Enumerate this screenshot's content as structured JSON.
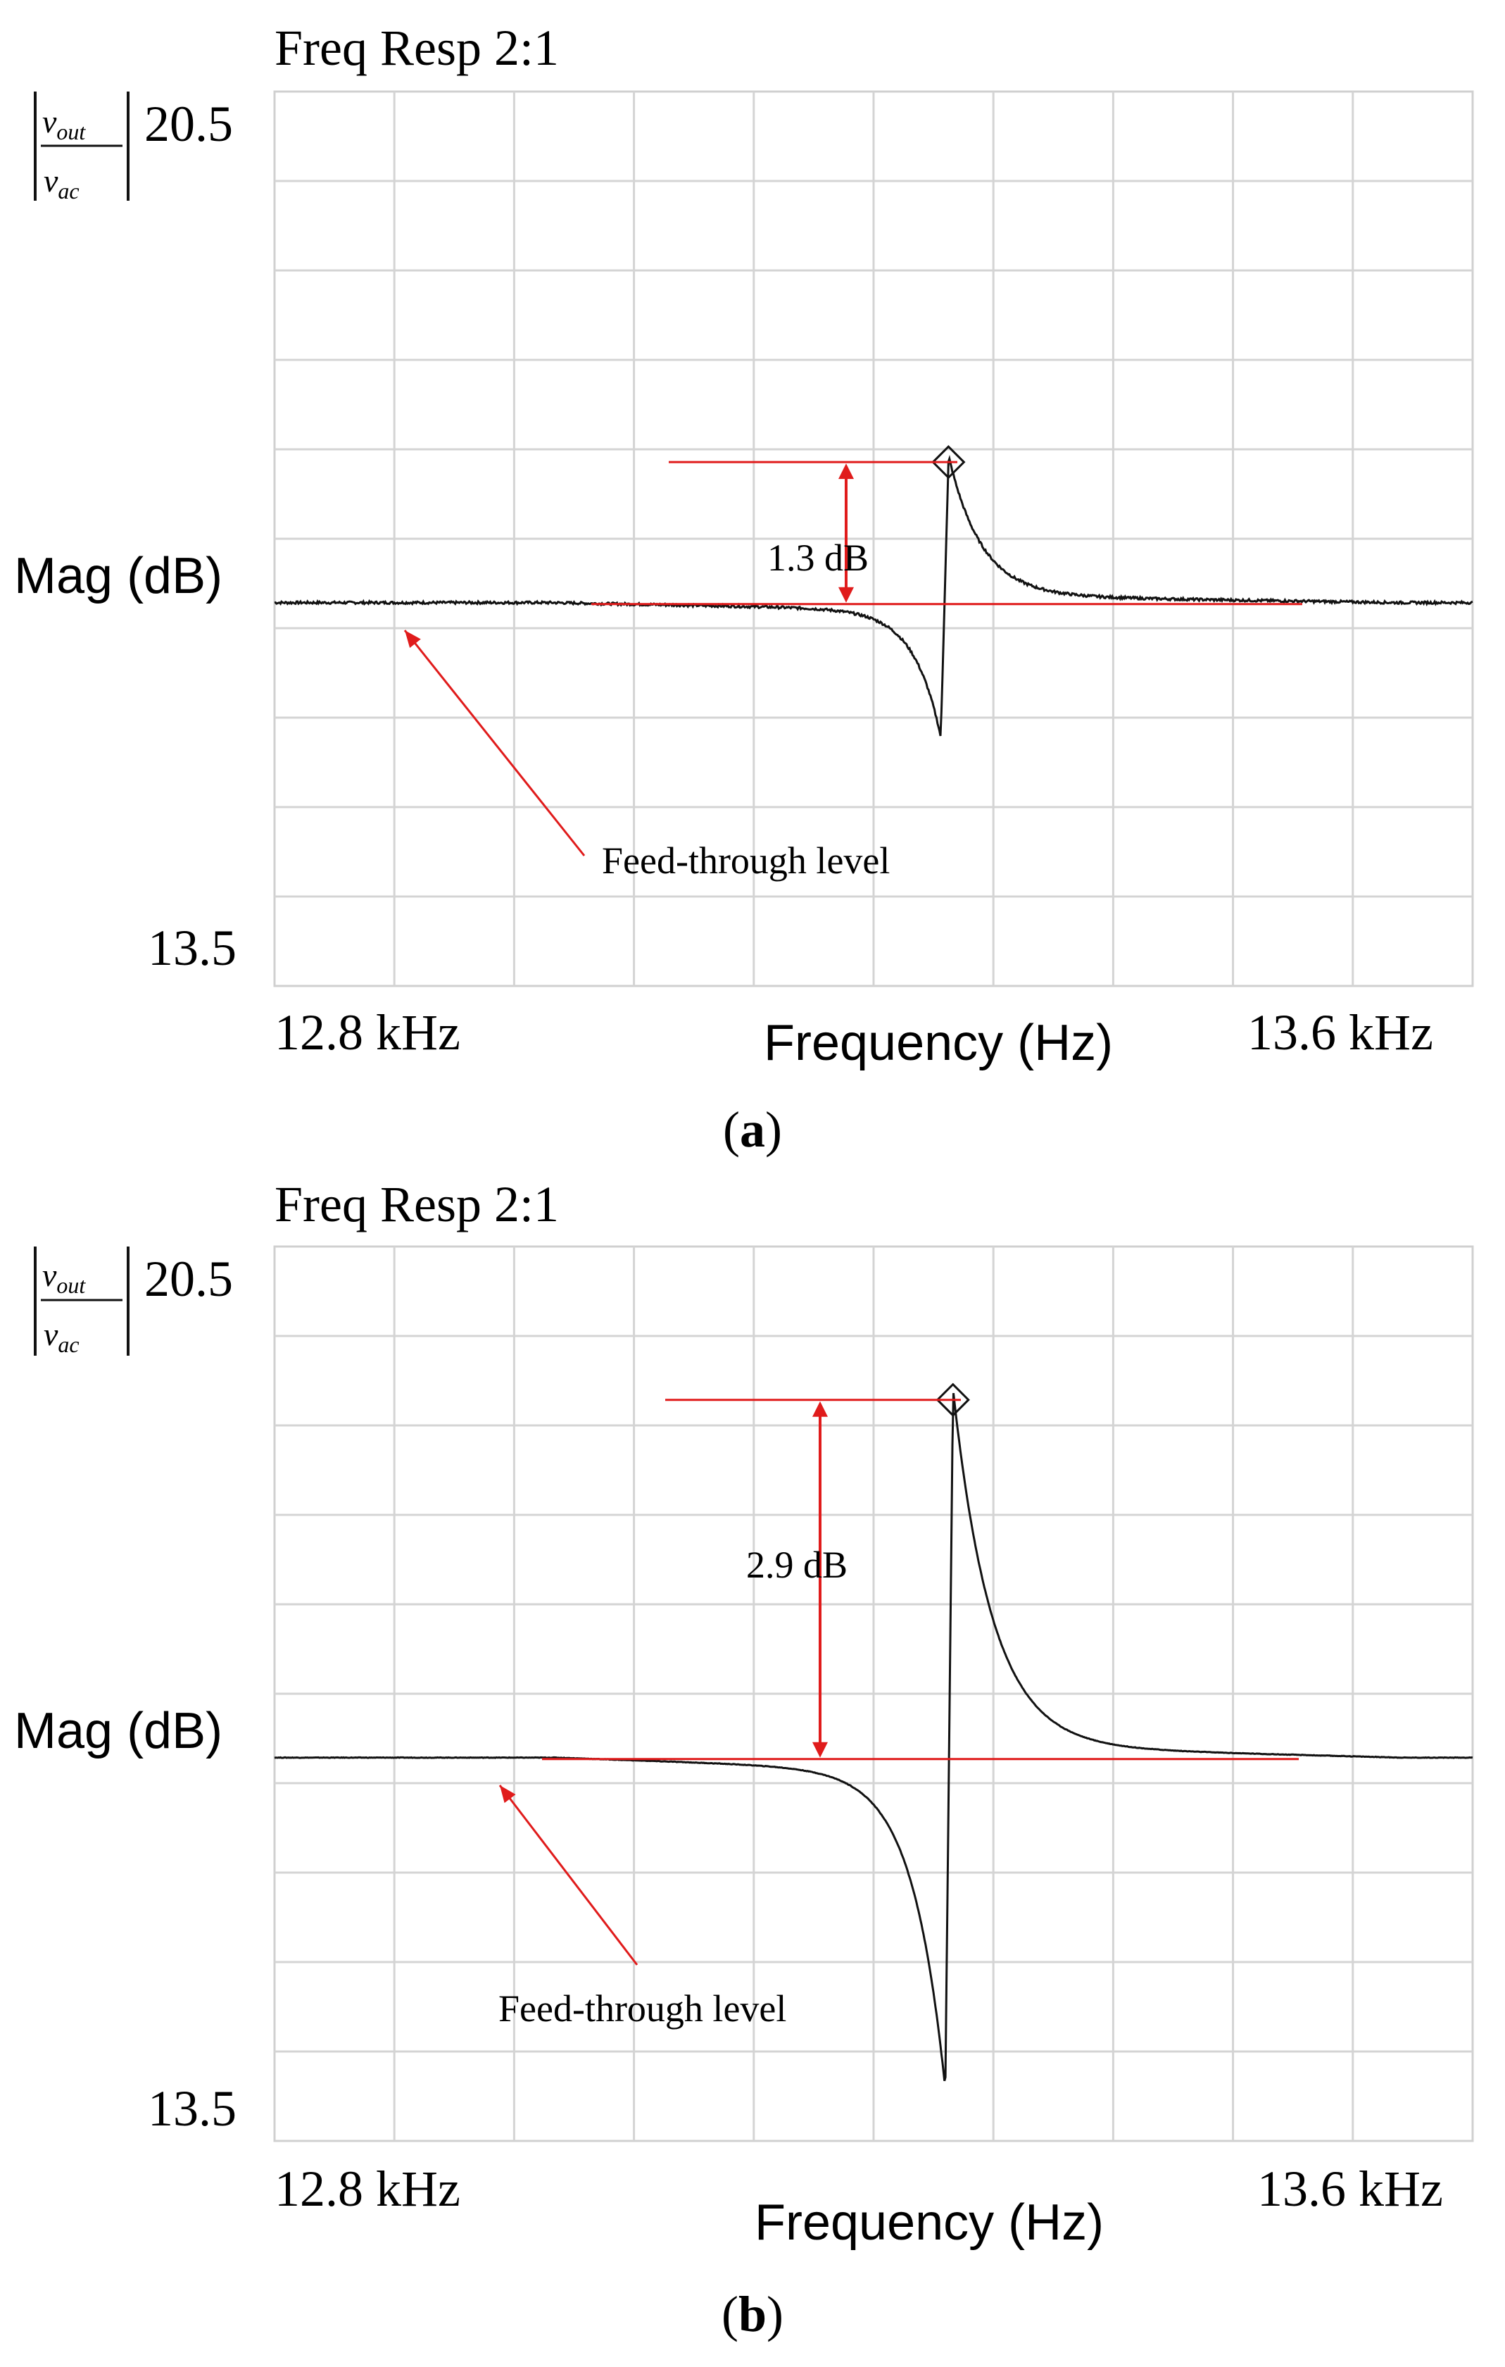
{
  "chart_data": [
    {
      "panel": "(a)",
      "type": "line",
      "title": "Freq Resp 2:1",
      "ylabel": "Mag (dB)",
      "ylabel_symbol": {
        "num": "v",
        "num_sub": "out",
        "den": "v",
        "den_sub": "ac"
      },
      "xlabel": "Frequency (Hz)",
      "xlim": [
        12800,
        13600
      ],
      "ylim": [
        13.5,
        20.5
      ],
      "xtick_labels": [
        "12.8 kHz",
        "13.6 kHz"
      ],
      "ytick_labels": [
        "20.5",
        "13.5"
      ],
      "grid": true,
      "feedthrough_db": 16.5,
      "peak": {
        "freq": 13250,
        "db": 17.6
      },
      "dip": {
        "freq": 13245,
        "db": 15.5
      },
      "annotations": {
        "delta": "1.3 dB",
        "feedthrough": "Feed-through level"
      },
      "caption_letter": "a"
    },
    {
      "panel": "(b)",
      "type": "line",
      "title": "Freq Resp 2:1",
      "ylabel": "Mag (dB)",
      "ylabel_symbol": {
        "num": "v",
        "num_sub": "out",
        "den": "v",
        "den_sub": "ac"
      },
      "xlabel": "Frequency (Hz)",
      "xlim": [
        12800,
        13600
      ],
      "ylim": [
        13.5,
        20.5
      ],
      "xtick_labels": [
        "12.8 kHz",
        "13.6 kHz"
      ],
      "ytick_labels": [
        "20.5",
        "13.5"
      ],
      "grid": true,
      "feedthrough_db": 16.5,
      "peak": {
        "freq": 13253,
        "db": 19.3
      },
      "dip": {
        "freq": 13248,
        "db": 14.0
      },
      "annotations": {
        "delta": "2.9 dB",
        "feedthrough": "Feed-through level"
      },
      "caption_letter": "b"
    }
  ]
}
